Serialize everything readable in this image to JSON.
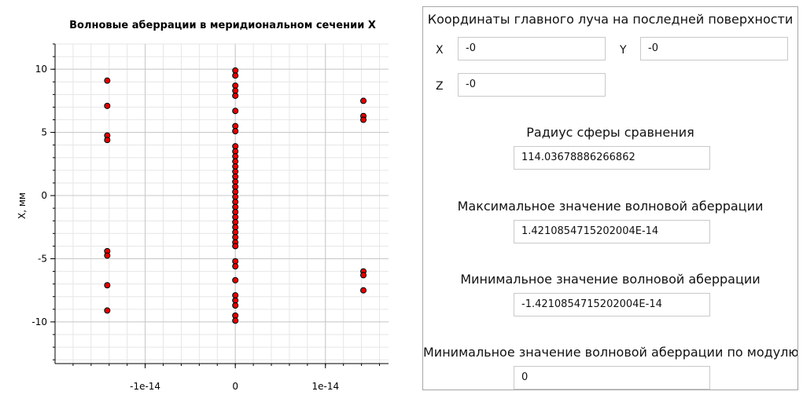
{
  "chart_data": {
    "type": "scatter",
    "title": "Волновые аберрации в меридиональном сечении X",
    "xlabel": "",
    "ylabel": "X, мм",
    "xlim": [
      -2e-14,
      1.7e-14
    ],
    "ylim": [
      -13.3,
      12
    ],
    "x_tick_labels": [
      {
        "value": -1e-14,
        "label": "-1e-14"
      },
      {
        "value": 0,
        "label": "0"
      },
      {
        "value": 1e-14,
        "label": "1e-14"
      }
    ],
    "y_tick_labels": [
      {
        "value": 10,
        "label": "10"
      },
      {
        "value": 5,
        "label": "5"
      },
      {
        "value": 0,
        "label": "0"
      },
      {
        "value": -5,
        "label": "-5"
      },
      {
        "value": -10,
        "label": "-10"
      }
    ],
    "grid": true,
    "marker_color": "#e00000",
    "marker_edge_color": "#000000",
    "series": [
      {
        "points": [
          {
            "x": -1.4210854715202004e-14,
            "y": 9.1
          },
          {
            "x": -1.4210854715202004e-14,
            "y": 7.1
          },
          {
            "x": -1.4210854715202004e-14,
            "y": 4.75
          },
          {
            "x": -1.4210854715202004e-14,
            "y": 4.4
          },
          {
            "x": -1.4210854715202004e-14,
            "y": -4.4
          },
          {
            "x": -1.4210854715202004e-14,
            "y": -4.75
          },
          {
            "x": -1.4210854715202004e-14,
            "y": -7.1
          },
          {
            "x": -1.4210854715202004e-14,
            "y": -9.1
          },
          {
            "x": 1.4210854715202004e-14,
            "y": 7.5
          },
          {
            "x": 1.4210854715202004e-14,
            "y": 6.3
          },
          {
            "x": 1.4210854715202004e-14,
            "y": 6.0
          },
          {
            "x": 1.4210854715202004e-14,
            "y": -6.0
          },
          {
            "x": 1.4210854715202004e-14,
            "y": -6.3
          },
          {
            "x": 1.4210854715202004e-14,
            "y": -7.5
          },
          {
            "x": 0,
            "y": 9.9
          },
          {
            "x": 0,
            "y": 9.5
          },
          {
            "x": 0,
            "y": 8.7
          },
          {
            "x": 0,
            "y": 8.3
          },
          {
            "x": 0,
            "y": 7.9
          },
          {
            "x": 0,
            "y": 6.7
          },
          {
            "x": 0,
            "y": 5.5
          },
          {
            "x": 0,
            "y": 5.1
          },
          {
            "x": 0,
            "y": 3.9
          },
          {
            "x": 0,
            "y": 3.5
          },
          {
            "x": 0,
            "y": 3.1
          },
          {
            "x": 0,
            "y": 2.7
          },
          {
            "x": 0,
            "y": 2.3
          },
          {
            "x": 0,
            "y": 1.9
          },
          {
            "x": 0,
            "y": 1.5
          },
          {
            "x": 0,
            "y": 1.1
          },
          {
            "x": 0,
            "y": 0.7
          },
          {
            "x": 0,
            "y": 0.3
          },
          {
            "x": 0,
            "y": -0.1
          },
          {
            "x": 0,
            "y": -0.5
          },
          {
            "x": 0,
            "y": -0.9
          },
          {
            "x": 0,
            "y": -1.3
          },
          {
            "x": 0,
            "y": -1.7
          },
          {
            "x": 0,
            "y": -2.1
          },
          {
            "x": 0,
            "y": -2.5
          },
          {
            "x": 0,
            "y": -2.9
          },
          {
            "x": 0,
            "y": -3.3
          },
          {
            "x": 0,
            "y": -3.7
          },
          {
            "x": 0,
            "y": -4.0
          },
          {
            "x": 0,
            "y": -5.2
          },
          {
            "x": 0,
            "y": -5.6
          },
          {
            "x": 0,
            "y": -6.7
          },
          {
            "x": 0,
            "y": -7.9
          },
          {
            "x": 0,
            "y": -8.3
          },
          {
            "x": 0,
            "y": -8.7
          },
          {
            "x": 0,
            "y": -9.5
          },
          {
            "x": 0,
            "y": -9.9
          }
        ]
      }
    ]
  },
  "panel": {
    "coords_title": "Координаты главного луча на последней поверхности",
    "x_label": "X",
    "x_value": "-0",
    "y_label": "Y",
    "y_value": "-0",
    "z_label": "Z",
    "z_value": "-0",
    "radius_title": "Радиус сферы сравнения",
    "radius_value": "114.03678886266862",
    "max_title": "Максимальное значение волновой аберрации",
    "max_value": "1.4210854715202004E-14",
    "min_title": "Минимальное значение волновой аберрации",
    "min_value": "-1.4210854715202004E-14",
    "min_abs_title": "Минимальное значение волновой аберрации по модулю",
    "min_abs_value": "0"
  }
}
